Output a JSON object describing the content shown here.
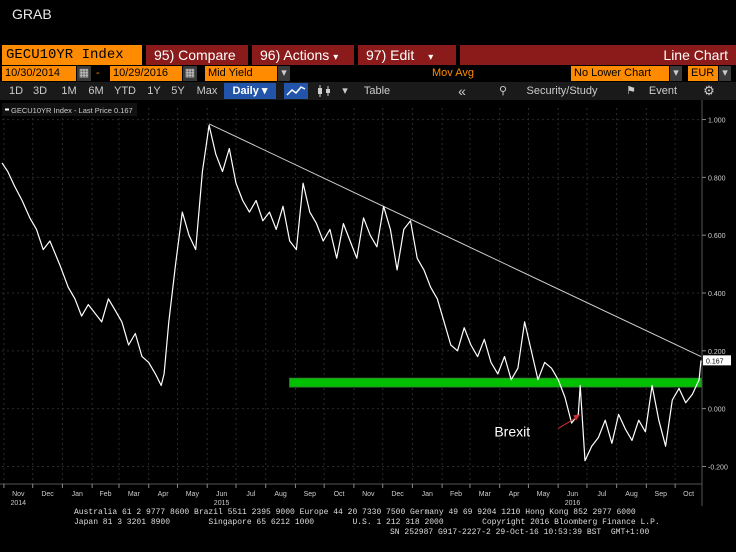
{
  "window_title": "GRAB",
  "toolbar": {
    "ticker": "GECU10YR Index",
    "compare": "95) Compare",
    "actions": "96) Actions",
    "edit": "97) Edit",
    "chart_type": "Line Chart"
  },
  "dates": {
    "start": "10/30/2014",
    "sep": "-",
    "end": "10/29/2016",
    "field": "Mid Yield",
    "mov_avg": "Mov Avg",
    "lower": "No Lower Chart",
    "currency": "EUR"
  },
  "periods": [
    "1D",
    "3D",
    "1M",
    "6M",
    "YTD",
    "1Y",
    "5Y",
    "Max"
  ],
  "frequency": "Daily",
  "table_label": "Table",
  "security_study": "Security/Study",
  "event_label": "Event",
  "legend": "GECU10YR Index - Last Price 0.167",
  "last_price_tag": "0.167",
  "annotation": "Brexit",
  "colors": {
    "accent": "#ff8c00",
    "button_red": "#8b1b1b",
    "support_band": "#00c000",
    "line": "#ffffff"
  },
  "footer": {
    "line1": "Australia 61 2 9777 8600 Brazil 5511 2395 9000 Europe 44 20 7330 7500 Germany 49 69 9204 1210 Hong Kong 852 2977 6000",
    "line2": "Japan 81 3 3201 8900        Singapore 65 6212 1000        U.S. 1 212 318 2000        Copyright 2016 Bloomberg Finance L.P.",
    "line3": "SN 252987 G917-2227-2 29-Oct-16 10:53:39 BST  GMT+1:00"
  },
  "chart_data": {
    "type": "line",
    "ylim": [
      -0.24,
      1.04
    ],
    "y_ticks": [
      1.0,
      0.8,
      0.6,
      0.4,
      0.2,
      0.0,
      -0.2
    ],
    "y_tick_labels": [
      "1.000",
      "0.800",
      "0.600",
      "0.400",
      "0.200",
      "0.000",
      "-0.200"
    ],
    "x_range": [
      "2014-10-30",
      "2016-10-29"
    ],
    "month_ticks": [
      {
        "date": "2014-11-01",
        "label": "Nov"
      },
      {
        "date": "2014-12-01",
        "label": "Dec"
      },
      {
        "date": "2015-01-01",
        "label": "Jan"
      },
      {
        "date": "2015-02-01",
        "label": "Feb"
      },
      {
        "date": "2015-03-01",
        "label": "Mar"
      },
      {
        "date": "2015-04-01",
        "label": "Apr"
      },
      {
        "date": "2015-05-01",
        "label": "May"
      },
      {
        "date": "2015-06-01",
        "label": "Jun"
      },
      {
        "date": "2015-07-01",
        "label": "Jul"
      },
      {
        "date": "2015-08-01",
        "label": "Aug"
      },
      {
        "date": "2015-09-01",
        "label": "Sep"
      },
      {
        "date": "2015-10-01",
        "label": "Oct"
      },
      {
        "date": "2015-11-01",
        "label": "Nov"
      },
      {
        "date": "2015-12-01",
        "label": "Dec"
      },
      {
        "date": "2016-01-01",
        "label": "Jan"
      },
      {
        "date": "2016-02-01",
        "label": "Feb"
      },
      {
        "date": "2016-03-01",
        "label": "Mar"
      },
      {
        "date": "2016-04-01",
        "label": "Apr"
      },
      {
        "date": "2016-05-01",
        "label": "May"
      },
      {
        "date": "2016-06-01",
        "label": "Jun"
      },
      {
        "date": "2016-07-01",
        "label": "Jul"
      },
      {
        "date": "2016-08-01",
        "label": "Aug"
      },
      {
        "date": "2016-09-01",
        "label": "Sep"
      },
      {
        "date": "2016-10-01",
        "label": "Oct"
      }
    ],
    "year_labels": [
      {
        "date": "2014-11-01",
        "label": "2014"
      },
      {
        "date": "2015-06-01",
        "label": "2015"
      },
      {
        "date": "2016-06-01",
        "label": "2016"
      }
    ],
    "series": [
      {
        "name": "GECU10YR Index",
        "x": [
          "2014-10-30",
          "2014-11-05",
          "2014-11-12",
          "2014-11-20",
          "2014-11-28",
          "2014-12-05",
          "2014-12-12",
          "2014-12-19",
          "2014-12-29",
          "2015-01-07",
          "2015-01-14",
          "2015-01-21",
          "2015-01-28",
          "2015-02-04",
          "2015-02-11",
          "2015-02-18",
          "2015-02-25",
          "2015-03-04",
          "2015-03-11",
          "2015-03-18",
          "2015-03-25",
          "2015-04-01",
          "2015-04-08",
          "2015-04-14",
          "2015-04-17",
          "2015-04-22",
          "2015-04-29",
          "2015-05-06",
          "2015-05-13",
          "2015-05-20",
          "2015-05-27",
          "2015-06-03",
          "2015-06-10",
          "2015-06-17",
          "2015-06-24",
          "2015-07-01",
          "2015-07-08",
          "2015-07-15",
          "2015-07-22",
          "2015-07-29",
          "2015-08-05",
          "2015-08-12",
          "2015-08-19",
          "2015-08-26",
          "2015-09-02",
          "2015-09-09",
          "2015-09-16",
          "2015-09-23",
          "2015-09-30",
          "2015-10-07",
          "2015-10-14",
          "2015-10-21",
          "2015-10-28",
          "2015-11-04",
          "2015-11-11",
          "2015-11-18",
          "2015-11-25",
          "2015-12-02",
          "2015-12-09",
          "2015-12-16",
          "2015-12-23",
          "2015-12-30",
          "2016-01-06",
          "2016-01-13",
          "2016-01-20",
          "2016-01-27",
          "2016-02-03",
          "2016-02-10",
          "2016-02-17",
          "2016-02-24",
          "2016-03-02",
          "2016-03-09",
          "2016-03-16",
          "2016-03-23",
          "2016-03-30",
          "2016-04-06",
          "2016-04-13",
          "2016-04-20",
          "2016-04-27",
          "2016-05-04",
          "2016-05-11",
          "2016-05-18",
          "2016-05-25",
          "2016-06-01",
          "2016-06-08",
          "2016-06-15",
          "2016-06-22",
          "2016-06-24",
          "2016-06-29",
          "2016-07-06",
          "2016-07-13",
          "2016-07-20",
          "2016-07-27",
          "2016-08-03",
          "2016-08-10",
          "2016-08-17",
          "2016-08-24",
          "2016-08-31",
          "2016-09-07",
          "2016-09-14",
          "2016-09-21",
          "2016-09-28",
          "2016-10-05",
          "2016-10-12",
          "2016-10-19",
          "2016-10-26",
          "2016-10-28"
        ],
        "y": [
          0.85,
          0.82,
          0.77,
          0.72,
          0.66,
          0.62,
          0.55,
          0.58,
          0.5,
          0.42,
          0.38,
          0.32,
          0.36,
          0.33,
          0.3,
          0.38,
          0.34,
          0.3,
          0.22,
          0.26,
          0.18,
          0.16,
          0.12,
          0.08,
          0.12,
          0.3,
          0.5,
          0.68,
          0.6,
          0.55,
          0.82,
          0.98,
          0.88,
          0.82,
          0.9,
          0.78,
          0.72,
          0.68,
          0.72,
          0.65,
          0.68,
          0.62,
          0.7,
          0.58,
          0.55,
          0.78,
          0.68,
          0.64,
          0.58,
          0.62,
          0.52,
          0.64,
          0.58,
          0.52,
          0.66,
          0.6,
          0.56,
          0.7,
          0.62,
          0.48,
          0.62,
          0.65,
          0.52,
          0.48,
          0.42,
          0.38,
          0.3,
          0.22,
          0.2,
          0.28,
          0.22,
          0.18,
          0.24,
          0.16,
          0.12,
          0.18,
          0.1,
          0.14,
          0.3,
          0.2,
          0.1,
          0.16,
          0.14,
          0.1,
          0.04,
          -0.05,
          -0.02,
          0.08,
          -0.18,
          -0.13,
          -0.1,
          -0.04,
          -0.12,
          -0.02,
          -0.07,
          -0.11,
          -0.04,
          -0.08,
          0.08,
          -0.04,
          -0.13,
          0.03,
          0.07,
          0.02,
          0.05,
          0.1,
          0.167
        ]
      }
    ],
    "trendline": {
      "x": [
        "2015-06-03",
        "2016-10-28"
      ],
      "y": [
        0.985,
        0.18
      ]
    },
    "support_band": {
      "y_low": 0.075,
      "y_high": 0.105,
      "x_start": "2015-08-26",
      "x_end": "2016-10-28"
    },
    "last_price": 0.167,
    "annotation": {
      "label": "Brexit",
      "arrow_to": {
        "x": "2016-06-24",
        "y": -0.02
      }
    },
    "grid": true
  }
}
